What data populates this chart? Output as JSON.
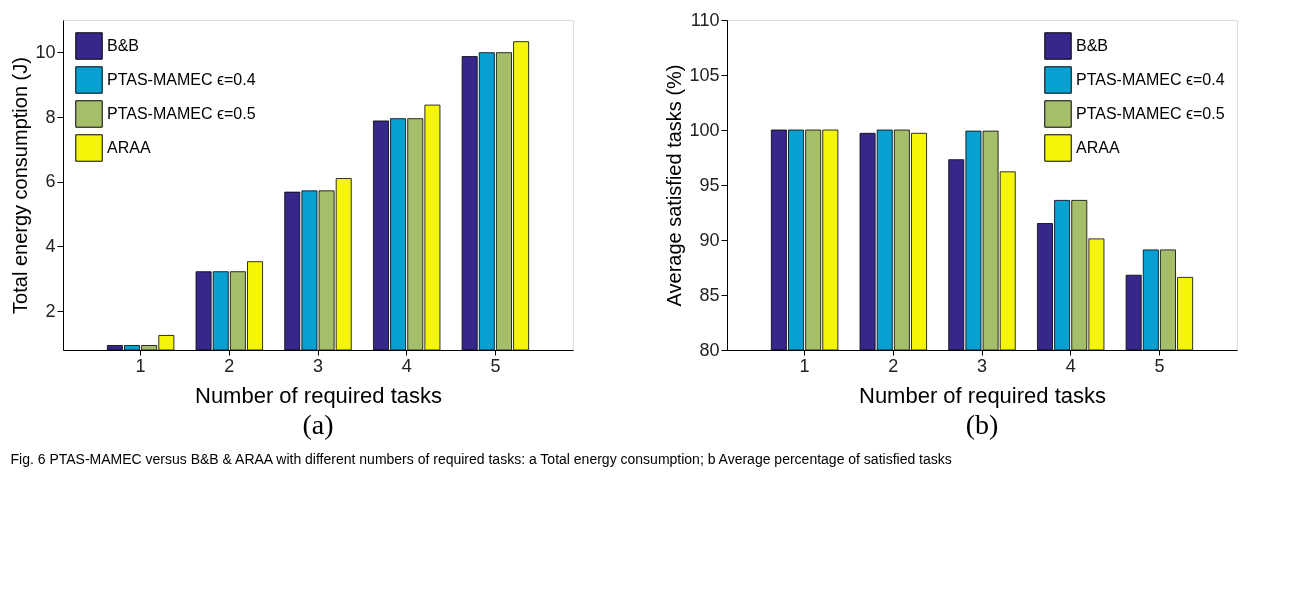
{
  "chart_data": [
    {
      "type": "bar",
      "title": "(a)",
      "xlabel": "Number of required tasks",
      "ylabel": "Total energy consumption (J)",
      "categories": [
        "1",
        "2",
        "3",
        "4",
        "5"
      ],
      "series": [
        {
          "name": "B&B",
          "color": "#36288a",
          "values": [
            0.94,
            3.22,
            5.68,
            7.88,
            9.87
          ]
        },
        {
          "name": "PTAS-MAMEC ϵ=0.4",
          "color": "#089fd1",
          "values": [
            0.94,
            3.22,
            5.72,
            7.95,
            9.99
          ]
        },
        {
          "name": "PTAS-MAMEC ϵ=0.5",
          "color": "#a5be6a",
          "values": [
            0.94,
            3.22,
            5.72,
            7.95,
            9.99
          ]
        },
        {
          "name": "ARAA",
          "color": "#f5f50a",
          "values": [
            1.25,
            3.53,
            6.1,
            8.37,
            10.33
          ]
        }
      ],
      "ylim": [
        0.8,
        11
      ],
      "yticks": [
        2,
        4,
        6,
        8,
        10
      ],
      "grid": false,
      "legend": "top left",
      "annotations": [
        "Fig. 6 PTAS-MAMEC versus B&B & ARAA with different numbers of required tasks: a Total energy consumption; b Average percentage of satisfied tasks"
      ]
    },
    {
      "type": "bar",
      "title": "(b)",
      "xlabel": "Number of required tasks",
      "ylabel": "Average satisfied tasks (%)",
      "categories": [
        "1",
        "2",
        "3",
        "4",
        "5"
      ],
      "series": [
        {
          "name": "B&B",
          "color": "#36288a",
          "values": [
            100,
            99.7,
            97.3,
            91.5,
            86.8
          ]
        },
        {
          "name": "PTAS-MAMEC ϵ=0.4",
          "color": "#089fd1",
          "values": [
            100,
            100,
            99.9,
            93.6,
            89.1
          ]
        },
        {
          "name": "PTAS-MAMEC ϵ=0.5",
          "color": "#a5be6a",
          "values": [
            100,
            100,
            99.9,
            93.6,
            89.1
          ]
        },
        {
          "name": "ARAA",
          "color": "#f5f50a",
          "values": [
            100,
            99.7,
            96.2,
            90.1,
            86.6
          ]
        }
      ],
      "ylim": [
        80,
        110
      ],
      "yticks": [
        80,
        85,
        90,
        95,
        100,
        105,
        110
      ],
      "grid": false,
      "legend": "top right"
    }
  ]
}
